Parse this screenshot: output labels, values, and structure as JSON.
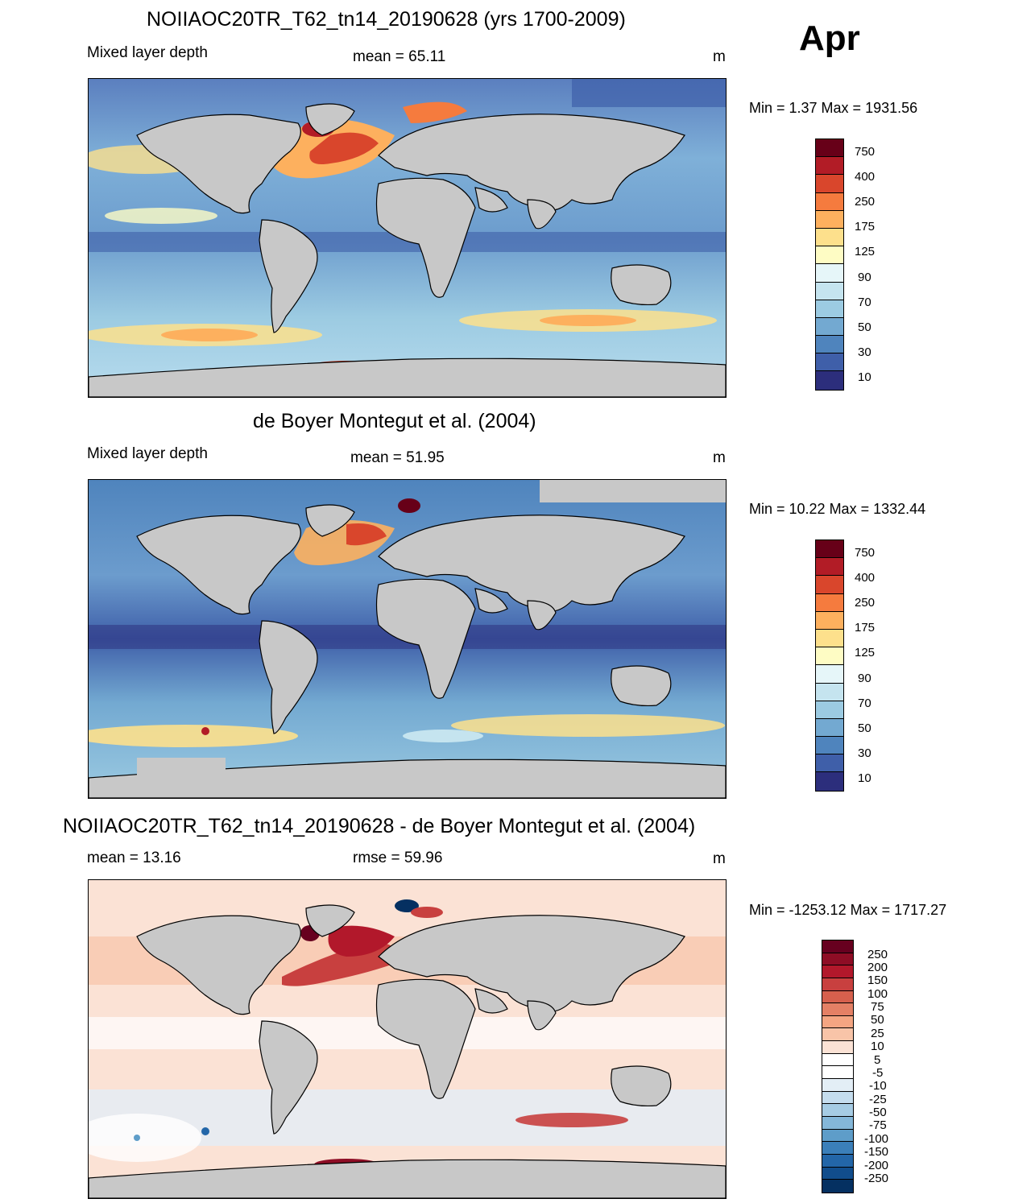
{
  "month": "Apr",
  "panels": [
    {
      "title": "NOIIAOC20TR_T62_tn14_20190628 (yrs 1700-2009)",
      "left_label": "Mixed layer depth",
      "center_label": "mean =  65.11",
      "units": "m",
      "minmax": "Min =   1.37 Max = 1931.56"
    },
    {
      "title": "de Boyer Montegut et al. (2004)",
      "left_label": "Mixed layer depth",
      "center_label": "mean =  51.95",
      "units": "m",
      "minmax": "Min =  10.22 Max = 1332.44"
    },
    {
      "title": "NOIIAOC20TR_T62_tn14_20190628 - de Boyer Montegut et al. (2004)",
      "left_label": "mean =  13.16",
      "center_label": "rmse =  59.96",
      "units": "m",
      "minmax": "Min = -1253.12 Max = 1717.27"
    }
  ],
  "colorbar_mld": {
    "labels": [
      "750",
      "400",
      "250",
      "175",
      "125",
      "90",
      "70",
      "50",
      "30",
      "10"
    ],
    "colors": [
      "#670018",
      "#b21c26",
      "#d9462c",
      "#f57b3e",
      "#fdb05e",
      "#fde08c",
      "#fefcc4",
      "#e6f6f9",
      "#c5e4ef",
      "#9ccbe2",
      "#73a9d1",
      "#4f84bd",
      "#3f5fa9",
      "#2c2e7c"
    ]
  },
  "colorbar_diff": {
    "labels": [
      "250",
      "200",
      "150",
      "100",
      "75",
      "50",
      "25",
      "10",
      "5",
      "-5",
      "-10",
      "-25",
      "-50",
      "-75",
      "-100",
      "-150",
      "-200",
      "-250"
    ],
    "colors": [
      "#67001f",
      "#8e0d25",
      "#b2182b",
      "#c8403f",
      "#d6604d",
      "#e48065",
      "#f4a582",
      "#f8c4a8",
      "#fbe2d5",
      "#ffffff",
      "#ffffff",
      "#e3eef6",
      "#c5ddee",
      "#a6cce4",
      "#84b7d9",
      "#5e9dc9",
      "#3b7fb9",
      "#2366a8",
      "#114d8c",
      "#053061"
    ]
  },
  "land_color": "#c8c8c8"
}
